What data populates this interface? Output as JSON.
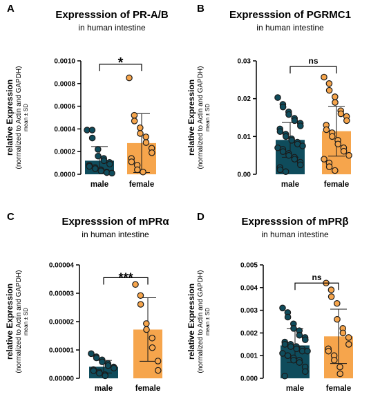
{
  "colors": {
    "male": "#0f4c5c",
    "female": "#f6a54c",
    "point_stroke": "#1a1a1a",
    "axis": "#000000"
  },
  "chart_data": [
    {
      "panel": "A",
      "type": "bar",
      "title": "Expresssion of PR-A/B",
      "subtitle": "in human intestine",
      "ylabel": "relative Expression",
      "ylabel_sub": "(normalized to Actin and GAPDH)",
      "ylabel_stat": "mean ± SD",
      "categories": [
        "male",
        "female"
      ],
      "yticks": [
        "0.0000",
        "0.0002",
        "0.0004",
        "0.0006",
        "0.0008",
        "0.0010"
      ],
      "ylim": [
        0,
        0.001
      ],
      "values": [
        0.00012,
        0.000275
      ],
      "sd": [
        0.000125,
        0.00026
      ],
      "points": [
        [
          0.00039,
          0.00039,
          0.00032,
          0.00022,
          0.00016,
          0.00014,
          0.00012,
          0.000105,
          9e-05,
          8e-05,
          7e-05,
          6e-05,
          5e-05,
          4e-05,
          3e-05,
          2e-05,
          1.5e-05,
          1e-05
        ],
        [
          0.00085,
          0.00052,
          0.00047,
          0.00041,
          0.00036,
          0.00033,
          0.00028,
          0.00023,
          0.00019,
          0.00014,
          0.00011,
          8e-05,
          4e-05,
          2e-05
        ]
      ],
      "significance": "*"
    },
    {
      "panel": "B",
      "type": "bar",
      "title": "Expresssion of PGRMC1",
      "subtitle": "in human intestine",
      "ylabel": "relative Expression",
      "ylabel_sub": "(normalized to Actin and GAPDH)",
      "ylabel_stat": "mean ± SD",
      "categories": [
        "male",
        "female"
      ],
      "yticks": [
        "0.00",
        "0.01",
        "0.02",
        "0.03"
      ],
      "ylim": [
        0,
        0.03
      ],
      "values": [
        0.0091,
        0.0114
      ],
      "sd": [
        0.0046,
        0.0066
      ],
      "points": [
        [
          0.0203,
          0.0185,
          0.0178,
          0.0165,
          0.0158,
          0.0148,
          0.0142,
          0.0135,
          0.0128,
          0.012,
          0.0113,
          0.0106,
          0.01,
          0.0094,
          0.009,
          0.0085,
          0.008,
          0.0075,
          0.007,
          0.0066,
          0.006,
          0.0055,
          0.005,
          0.0045,
          0.004,
          0.0032,
          0.0025,
          0.0018,
          0.0012,
          0.0007
        ],
        [
          0.0257,
          0.024,
          0.0222,
          0.0205,
          0.019,
          0.0168,
          0.016,
          0.0153,
          0.0142,
          0.013,
          0.0118,
          0.011,
          0.01,
          0.009,
          0.008,
          0.007,
          0.0061,
          0.005,
          0.004,
          0.003,
          0.002,
          0.001
        ]
      ],
      "significance": "ns"
    },
    {
      "panel": "C",
      "type": "bar",
      "title": "Expresssion of mPRα",
      "subtitle": "in human intestine",
      "ylabel": "relative Expression",
      "ylabel_sub": "(normalized to Actin and GAPDH)",
      "ylabel_stat": "mean ± SD",
      "categories": [
        "male",
        "female"
      ],
      "yticks": [
        "0.00000",
        "0.00001",
        "0.00002",
        "0.00003",
        "0.00004"
      ],
      "ylim": [
        0,
        4e-05
      ],
      "values": [
        4.1e-06,
        1.72e-05
      ],
      "sd": [
        2.2e-06,
        1.12e-05
      ],
      "points": [
        [
          8.7e-06,
          7.6e-06,
          7.2e-06,
          6.5e-06,
          5.8e-06,
          5.2e-06,
          4.5e-06,
          4e-06,
          3.6e-06,
          3.1e-06,
          2.7e-06,
          2.2e-06,
          1.8e-06,
          1.3e-06,
          9e-07
        ],
        [
          3.31e-05,
          2.92e-05,
          2.61e-05,
          1.93e-05,
          1.72e-05,
          1.42e-05,
          1.08e-05,
          6.1e-06,
          2.8e-06
        ]
      ],
      "significance": "***"
    },
    {
      "panel": "D",
      "type": "bar",
      "title": "Expresssion of mPRβ",
      "subtitle": "in human intestine",
      "ylabel": "relative Expression",
      "ylabel_sub": "(normalized to Actin and GAPDH)",
      "ylabel_stat": "mean ± SD",
      "categories": [
        "male",
        "female"
      ],
      "yticks": [
        "0.000",
        "0.001",
        "0.002",
        "0.003",
        "0.004",
        "0.005"
      ],
      "ylim": [
        0,
        0.005
      ],
      "values": [
        0.00145,
        0.00185
      ],
      "sd": [
        0.00075,
        0.0012
      ],
      "points": [
        [
          0.0031,
          0.0029,
          0.0027,
          0.0024,
          0.0022,
          0.0021,
          0.0019,
          0.0018,
          0.0017,
          0.0016,
          0.0015,
          0.0015,
          0.0014,
          0.0014,
          0.0013,
          0.0013,
          0.0012,
          0.0012,
          0.0011,
          0.001,
          0.001,
          0.0009,
          0.0008,
          0.0008,
          0.0007,
          0.0005,
          0.0003,
          0.0001
        ],
        [
          0.0042,
          0.0039,
          0.0036,
          0.0033,
          0.0026,
          0.0022,
          0.002,
          0.0018,
          0.0015,
          0.0013,
          0.0012,
          0.001,
          0.0008,
          0.0005,
          0.0002
        ]
      ],
      "significance": "ns"
    }
  ]
}
